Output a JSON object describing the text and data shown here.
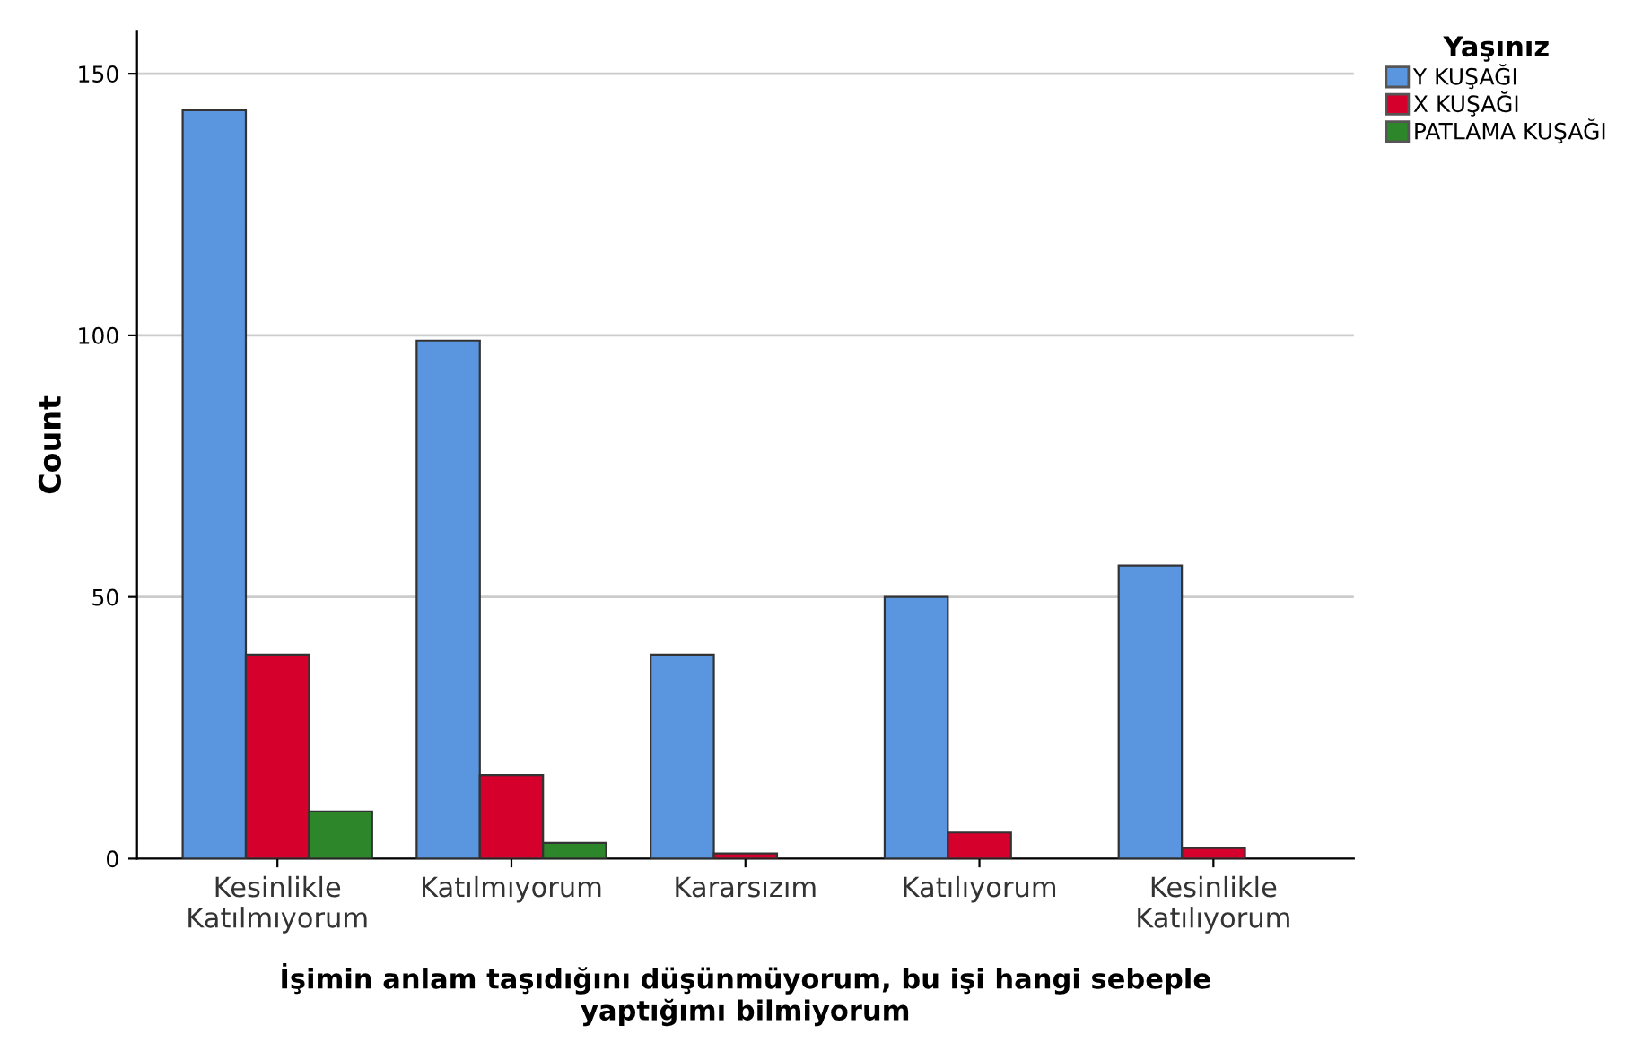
{
  "chart_data": {
    "type": "bar",
    "xlabel": "İşimin anlam taşıdığını düşünmüyorum, bu işi hangi sebeple\nyaptığımı bilmiyorum",
    "ylabel": "Count",
    "legend_title": "Yaşınız",
    "categories": [
      "Kesinlikle\nKatılmıyorum",
      "Katılmıyorum",
      "Kararsızım",
      "Katılıyorum",
      "Kesinlikle\nKatılıyorum"
    ],
    "series": [
      {
        "name": "Y KUŞAĞI",
        "color": "#5a96e0",
        "values": [
          143,
          99,
          39,
          50,
          56
        ]
      },
      {
        "name": "X KUŞAĞI",
        "color": "#d5002c",
        "values": [
          39,
          16,
          1,
          5,
          2
        ]
      },
      {
        "name": "PATLAMA KUŞAĞI",
        "color": "#2e862a",
        "values": [
          9,
          3,
          0,
          0,
          0
        ]
      }
    ],
    "ylim": [
      0,
      158
    ],
    "yticks": [
      0,
      50,
      100,
      150
    ],
    "grid": "y",
    "legend": "top right"
  }
}
